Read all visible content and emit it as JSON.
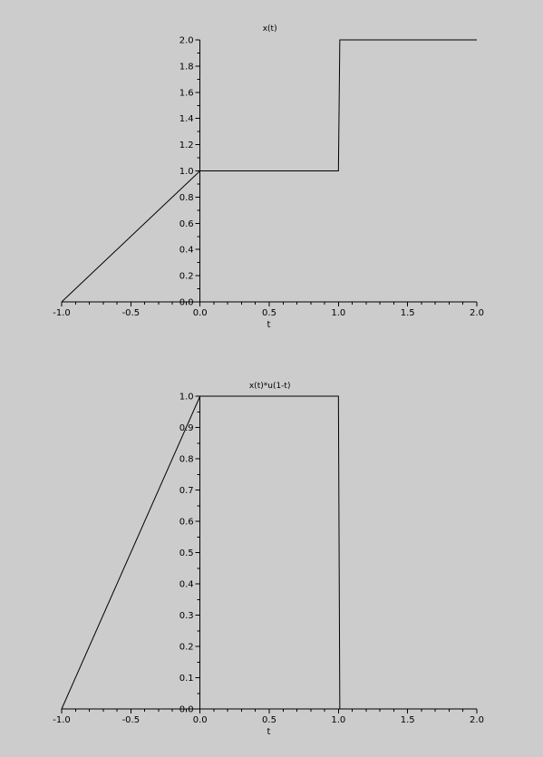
{
  "chart_data": [
    {
      "type": "line",
      "title": "x(t)",
      "xlabel": "t",
      "ylabel": "",
      "xlim": [
        -1.0,
        2.0
      ],
      "ylim": [
        0.0,
        2.0
      ],
      "xticks": [
        "-1.0",
        "-0.5",
        "0.0",
        "0.5",
        "1.0",
        "1.5",
        "2.0"
      ],
      "yticks": [
        "0.0",
        "0.2",
        "0.4",
        "0.6",
        "0.8",
        "1.0",
        "1.2",
        "1.4",
        "1.6",
        "1.8",
        "2.0"
      ],
      "grid": false,
      "series": [
        {
          "x": [
            -1.0,
            0.0,
            1.0,
            1.01,
            2.0
          ],
          "y": [
            0.0,
            1.0,
            1.0,
            2.0,
            2.0
          ]
        }
      ]
    },
    {
      "type": "line",
      "title": "x(t)*u(1-t)",
      "xlabel": "t",
      "ylabel": "",
      "xlim": [
        -1.0,
        2.0
      ],
      "ylim": [
        0.0,
        1.0
      ],
      "xticks": [
        "-1.0",
        "-0.5",
        "0.0",
        "0.5",
        "1.0",
        "1.5",
        "2.0"
      ],
      "yticks": [
        "0.0",
        "0.1",
        "0.2",
        "0.3",
        "0.4",
        "0.5",
        "0.6",
        "0.7",
        "0.8",
        "0.9",
        "1.0"
      ],
      "grid": false,
      "series": [
        {
          "x": [
            -1.0,
            0.0,
            1.0,
            1.01
          ],
          "y": [
            0.0,
            1.0,
            1.0,
            0.0
          ]
        }
      ]
    }
  ]
}
